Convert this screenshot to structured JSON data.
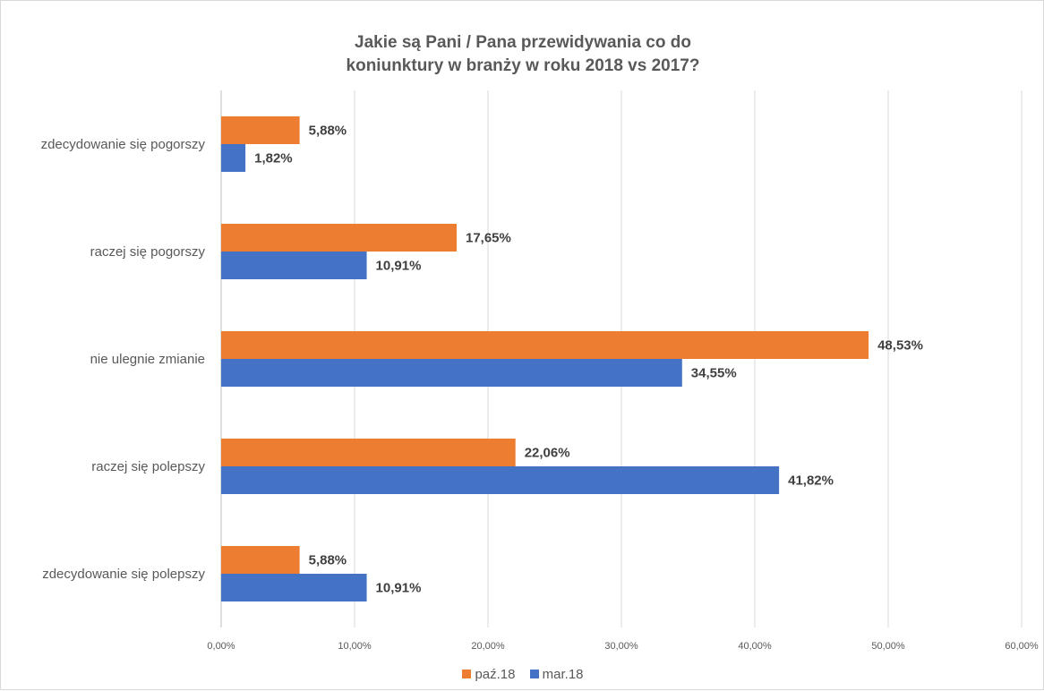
{
  "chart_data": {
    "type": "bar",
    "orientation": "horizontal",
    "title_lines": [
      "Jakie są Pani / Pana przewidywania co do",
      "koniunktury  w branży  w roku 2018 vs 2017?"
    ],
    "categories": [
      "zdecydowanie się pogorszy",
      "raczej się pogorszy",
      "nie ulegnie zmianie",
      "raczej się polepszy",
      "zdecydowanie się polepszy"
    ],
    "series": [
      {
        "name": "paź.18",
        "color": "#ED7D31",
        "values": [
          5.88,
          17.65,
          48.53,
          22.06,
          5.88
        ],
        "labels": [
          "5,88%",
          "17,65%",
          "48,53%",
          "22,06%",
          "5,88%"
        ]
      },
      {
        "name": "mar.18",
        "color": "#4472C4",
        "values": [
          1.82,
          10.91,
          34.55,
          41.82,
          10.91
        ],
        "labels": [
          "1,82%",
          "10,91%",
          "34,55%",
          "41,82%",
          "10,91%"
        ]
      }
    ],
    "x_ticks": [
      "0,00%",
      "10,00%",
      "20,00%",
      "30,00%",
      "40,00%",
      "50,00%",
      "60,00%"
    ],
    "xlim": [
      0,
      60
    ],
    "grid": true,
    "legend_position": "bottom"
  }
}
